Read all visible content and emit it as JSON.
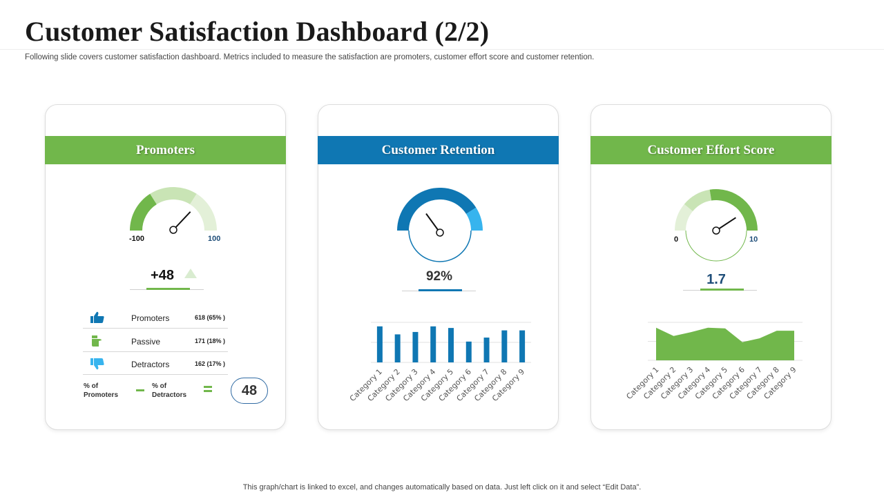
{
  "header": {
    "title": "Customer Satisfaction Dashboard (2/2)",
    "subtitle": "Following slide covers customer satisfaction dashboard. Metrics included to measure the satisfaction are promoters, customer effort score and customer retention."
  },
  "footer": {
    "note": "This graph/chart is linked to excel,  and changes automatically based on data. Just left click on it and select “Edit Data”."
  },
  "colors": {
    "green": "#71b74b",
    "light_green": "#c9e4b5",
    "pale_green": "#e3f0d8",
    "blue": "#0f77b3",
    "light_blue": "#37b4ee"
  },
  "promoters": {
    "title": "Promoters",
    "gauge_min": "-100",
    "gauge_max": "100",
    "value_label": "+48",
    "value": 48,
    "trend_icon": "triangle-up-icon",
    "rows": [
      {
        "label": "Promoters",
        "value": "618 (65% )",
        "icon": "thumbs-up-icon"
      },
      {
        "label": "Passive",
        "value": "171 (18% )",
        "icon": "thumb-sideways-icon"
      },
      {
        "label": "Detractors",
        "value": "162 (17% )",
        "icon": "thumbs-down-icon"
      }
    ],
    "pct_promoters_label": [
      "% of",
      "Promoters"
    ],
    "pct_detractors_label": [
      "% of",
      "Detractors"
    ],
    "nps": "48"
  },
  "retention": {
    "title": "Customer Retention",
    "value_label": "92%",
    "value": 92
  },
  "effort": {
    "title": "Customer Effort Score",
    "gauge_min": "0",
    "gauge_max": "10",
    "value_label": "1.7",
    "value": 1.7
  },
  "chart_data": [
    {
      "type": "bar",
      "panel": "Customer Retention",
      "categories": [
        "Category 1",
        "Category 2",
        "Category 3",
        "Category 4",
        "Category 5",
        "Category 6",
        "Category 7",
        "Category 8",
        "Category 9"
      ],
      "values": [
        4.5,
        3.5,
        3.8,
        4.5,
        4.3,
        2.6,
        3.1,
        4.0,
        4.0
      ],
      "ylim": [
        0,
        5
      ],
      "grid": true
    },
    {
      "type": "area",
      "panel": "Customer Effort Score",
      "categories": [
        "Category 1",
        "Category 2",
        "Category 3",
        "Category 4",
        "Category 5",
        "Category 6",
        "Category 7",
        "Category 8",
        "Category 9"
      ],
      "values": [
        4.3,
        3.2,
        3.7,
        4.3,
        4.2,
        2.4,
        2.9,
        3.9,
        3.9
      ],
      "ylim": [
        0,
        5
      ],
      "grid": true
    }
  ]
}
